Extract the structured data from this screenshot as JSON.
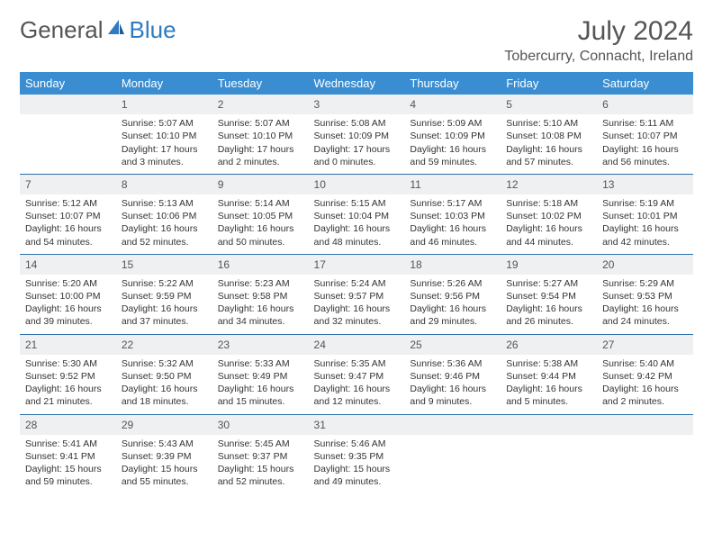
{
  "brand": {
    "part1": "General",
    "part2": "Blue"
  },
  "title": "July 2024",
  "location": "Tobercurry, Connacht, Ireland",
  "colors": {
    "header_bg": "#3a8dd0",
    "header_text": "#ffffff",
    "row_divider": "#2f6fa8",
    "daynum_bg": "#eef0f1",
    "body_text": "#333333",
    "title_text": "#555555",
    "logo_blue": "#2f7bbf"
  },
  "weekdays": [
    "Sunday",
    "Monday",
    "Tuesday",
    "Wednesday",
    "Thursday",
    "Friday",
    "Saturday"
  ],
  "weeks": [
    {
      "nums": [
        "",
        "1",
        "2",
        "3",
        "4",
        "5",
        "6"
      ],
      "cells": [
        {
          "sunrise": "",
          "sunset": "",
          "daylight": ""
        },
        {
          "sunrise": "Sunrise: 5:07 AM",
          "sunset": "Sunset: 10:10 PM",
          "daylight": "Daylight: 17 hours and 3 minutes."
        },
        {
          "sunrise": "Sunrise: 5:07 AM",
          "sunset": "Sunset: 10:10 PM",
          "daylight": "Daylight: 17 hours and 2 minutes."
        },
        {
          "sunrise": "Sunrise: 5:08 AM",
          "sunset": "Sunset: 10:09 PM",
          "daylight": "Daylight: 17 hours and 0 minutes."
        },
        {
          "sunrise": "Sunrise: 5:09 AM",
          "sunset": "Sunset: 10:09 PM",
          "daylight": "Daylight: 16 hours and 59 minutes."
        },
        {
          "sunrise": "Sunrise: 5:10 AM",
          "sunset": "Sunset: 10:08 PM",
          "daylight": "Daylight: 16 hours and 57 minutes."
        },
        {
          "sunrise": "Sunrise: 5:11 AM",
          "sunset": "Sunset: 10:07 PM",
          "daylight": "Daylight: 16 hours and 56 minutes."
        }
      ]
    },
    {
      "nums": [
        "7",
        "8",
        "9",
        "10",
        "11",
        "12",
        "13"
      ],
      "cells": [
        {
          "sunrise": "Sunrise: 5:12 AM",
          "sunset": "Sunset: 10:07 PM",
          "daylight": "Daylight: 16 hours and 54 minutes."
        },
        {
          "sunrise": "Sunrise: 5:13 AM",
          "sunset": "Sunset: 10:06 PM",
          "daylight": "Daylight: 16 hours and 52 minutes."
        },
        {
          "sunrise": "Sunrise: 5:14 AM",
          "sunset": "Sunset: 10:05 PM",
          "daylight": "Daylight: 16 hours and 50 minutes."
        },
        {
          "sunrise": "Sunrise: 5:15 AM",
          "sunset": "Sunset: 10:04 PM",
          "daylight": "Daylight: 16 hours and 48 minutes."
        },
        {
          "sunrise": "Sunrise: 5:17 AM",
          "sunset": "Sunset: 10:03 PM",
          "daylight": "Daylight: 16 hours and 46 minutes."
        },
        {
          "sunrise": "Sunrise: 5:18 AM",
          "sunset": "Sunset: 10:02 PM",
          "daylight": "Daylight: 16 hours and 44 minutes."
        },
        {
          "sunrise": "Sunrise: 5:19 AM",
          "sunset": "Sunset: 10:01 PM",
          "daylight": "Daylight: 16 hours and 42 minutes."
        }
      ]
    },
    {
      "nums": [
        "14",
        "15",
        "16",
        "17",
        "18",
        "19",
        "20"
      ],
      "cells": [
        {
          "sunrise": "Sunrise: 5:20 AM",
          "sunset": "Sunset: 10:00 PM",
          "daylight": "Daylight: 16 hours and 39 minutes."
        },
        {
          "sunrise": "Sunrise: 5:22 AM",
          "sunset": "Sunset: 9:59 PM",
          "daylight": "Daylight: 16 hours and 37 minutes."
        },
        {
          "sunrise": "Sunrise: 5:23 AM",
          "sunset": "Sunset: 9:58 PM",
          "daylight": "Daylight: 16 hours and 34 minutes."
        },
        {
          "sunrise": "Sunrise: 5:24 AM",
          "sunset": "Sunset: 9:57 PM",
          "daylight": "Daylight: 16 hours and 32 minutes."
        },
        {
          "sunrise": "Sunrise: 5:26 AM",
          "sunset": "Sunset: 9:56 PM",
          "daylight": "Daylight: 16 hours and 29 minutes."
        },
        {
          "sunrise": "Sunrise: 5:27 AM",
          "sunset": "Sunset: 9:54 PM",
          "daylight": "Daylight: 16 hours and 26 minutes."
        },
        {
          "sunrise": "Sunrise: 5:29 AM",
          "sunset": "Sunset: 9:53 PM",
          "daylight": "Daylight: 16 hours and 24 minutes."
        }
      ]
    },
    {
      "nums": [
        "21",
        "22",
        "23",
        "24",
        "25",
        "26",
        "27"
      ],
      "cells": [
        {
          "sunrise": "Sunrise: 5:30 AM",
          "sunset": "Sunset: 9:52 PM",
          "daylight": "Daylight: 16 hours and 21 minutes."
        },
        {
          "sunrise": "Sunrise: 5:32 AM",
          "sunset": "Sunset: 9:50 PM",
          "daylight": "Daylight: 16 hours and 18 minutes."
        },
        {
          "sunrise": "Sunrise: 5:33 AM",
          "sunset": "Sunset: 9:49 PM",
          "daylight": "Daylight: 16 hours and 15 minutes."
        },
        {
          "sunrise": "Sunrise: 5:35 AM",
          "sunset": "Sunset: 9:47 PM",
          "daylight": "Daylight: 16 hours and 12 minutes."
        },
        {
          "sunrise": "Sunrise: 5:36 AM",
          "sunset": "Sunset: 9:46 PM",
          "daylight": "Daylight: 16 hours and 9 minutes."
        },
        {
          "sunrise": "Sunrise: 5:38 AM",
          "sunset": "Sunset: 9:44 PM",
          "daylight": "Daylight: 16 hours and 5 minutes."
        },
        {
          "sunrise": "Sunrise: 5:40 AM",
          "sunset": "Sunset: 9:42 PM",
          "daylight": "Daylight: 16 hours and 2 minutes."
        }
      ]
    },
    {
      "nums": [
        "28",
        "29",
        "30",
        "31",
        "",
        "",
        ""
      ],
      "cells": [
        {
          "sunrise": "Sunrise: 5:41 AM",
          "sunset": "Sunset: 9:41 PM",
          "daylight": "Daylight: 15 hours and 59 minutes."
        },
        {
          "sunrise": "Sunrise: 5:43 AM",
          "sunset": "Sunset: 9:39 PM",
          "daylight": "Daylight: 15 hours and 55 minutes."
        },
        {
          "sunrise": "Sunrise: 5:45 AM",
          "sunset": "Sunset: 9:37 PM",
          "daylight": "Daylight: 15 hours and 52 minutes."
        },
        {
          "sunrise": "Sunrise: 5:46 AM",
          "sunset": "Sunset: 9:35 PM",
          "daylight": "Daylight: 15 hours and 49 minutes."
        },
        {
          "sunrise": "",
          "sunset": "",
          "daylight": ""
        },
        {
          "sunrise": "",
          "sunset": "",
          "daylight": ""
        },
        {
          "sunrise": "",
          "sunset": "",
          "daylight": ""
        }
      ]
    }
  ]
}
